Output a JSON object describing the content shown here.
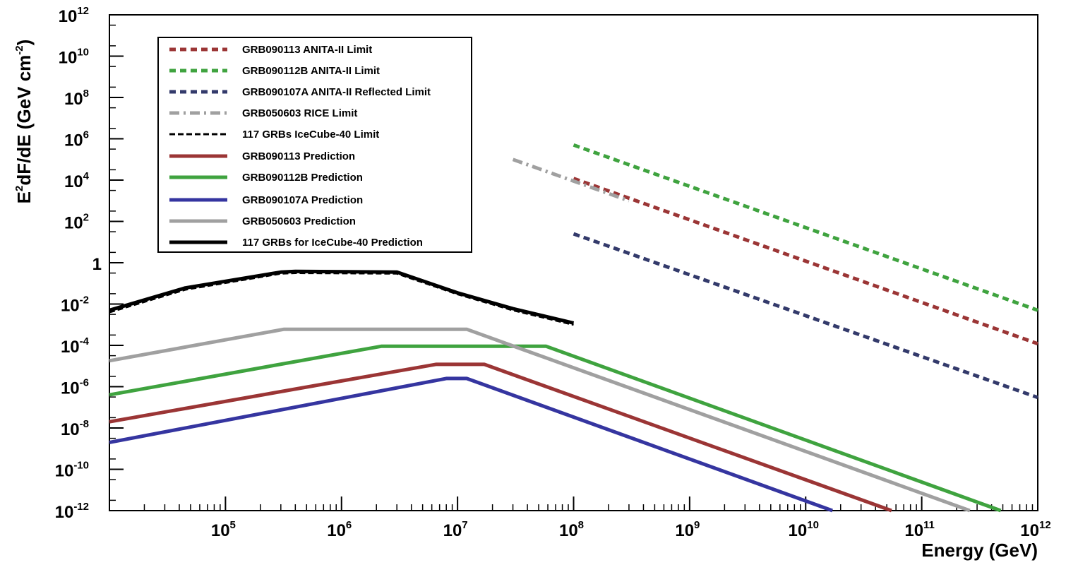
{
  "chart_data": {
    "type": "line",
    "title": "",
    "xlabel": "Energy (GeV)",
    "ylabel": {
      "base": "E",
      "sup1": "2",
      "mid": "dF/dE (GeV cm",
      "sup2": "-2",
      "end": ")"
    },
    "log_x": true,
    "log_y": true,
    "xlim": [
      10000,
      1000000000000
    ],
    "ylim": [
      1e-12,
      1000000000000.0
    ],
    "grid": false,
    "legend_position": "top-left",
    "x_ticks": [
      {
        "value": 100000,
        "base": "10",
        "exp": "5"
      },
      {
        "value": 1000000,
        "base": "10",
        "exp": "6"
      },
      {
        "value": 10000000,
        "base": "10",
        "exp": "7"
      },
      {
        "value": 100000000,
        "base": "10",
        "exp": "8"
      },
      {
        "value": 1000000000,
        "base": "10",
        "exp": "9"
      },
      {
        "value": 10000000000,
        "base": "10",
        "exp": "10"
      },
      {
        "value": 100000000000,
        "base": "10",
        "exp": "11"
      },
      {
        "value": 1000000000000,
        "base": "10",
        "exp": "12"
      }
    ],
    "y_ticks": [
      {
        "value": 1000000000000.0,
        "base": "10",
        "exp": "12"
      },
      {
        "value": 10000000000.0,
        "base": "10",
        "exp": "10"
      },
      {
        "value": 100000000.0,
        "base": "10",
        "exp": "8"
      },
      {
        "value": 1000000.0,
        "base": "10",
        "exp": "6"
      },
      {
        "value": 10000.0,
        "base": "10",
        "exp": "4"
      },
      {
        "value": 100.0,
        "base": "10",
        "exp": "2"
      },
      {
        "value": 1,
        "base": "1",
        "exp": ""
      },
      {
        "value": 0.01,
        "base": "10",
        "exp": "-2"
      },
      {
        "value": 0.0001,
        "base": "10",
        "exp": "-4"
      },
      {
        "value": 1e-06,
        "base": "10",
        "exp": "-6"
      },
      {
        "value": 1e-08,
        "base": "10",
        "exp": "-8"
      },
      {
        "value": 1e-10,
        "base": "10",
        "exp": "-10"
      },
      {
        "value": 1e-12,
        "base": "10",
        "exp": "-12"
      }
    ],
    "series": [
      {
        "name": "GRB090113 ANITA-II Limit",
        "color": "#9b3535",
        "style": "dotted-thick",
        "x": [
          100000000,
          1000000000000
        ],
        "y": [
          12000,
          0.00012
        ]
      },
      {
        "name": "GRB090112B ANITA-II Limit",
        "color": "#3fa33f",
        "style": "dotted-thick",
        "x": [
          100000000,
          1000000000000
        ],
        "y": [
          500000,
          0.005
        ]
      },
      {
        "name": "GRB090107A ANITA-II Reflected Limit",
        "color": "#333a6b",
        "style": "dotted-thick",
        "x": [
          100000000,
          1000000000000
        ],
        "y": [
          25,
          3e-07
        ]
      },
      {
        "name": "GRB050603 RICE Limit",
        "color": "#a0a0a0",
        "style": "dashdot",
        "x": [
          30000000,
          300000000
        ],
        "y": [
          100000,
          1000
        ]
      },
      {
        "name": "117 GRBs IceCube-40 Limit",
        "color": "#000000",
        "style": "dashed",
        "x": [
          10000,
          45000,
          300000,
          400000,
          3000000,
          10000000,
          30000000,
          100000000
        ],
        "y": [
          0.004,
          0.05,
          0.3,
          0.32,
          0.3,
          0.03,
          0.005,
          0.001
        ]
      },
      {
        "name": "GRB090113 Prediction",
        "color": "#9b3535",
        "style": "solid",
        "x": [
          10000,
          6500000,
          17000000,
          55000000000
        ],
        "y": [
          2e-08,
          1.2e-05,
          1.2e-05,
          1e-12
        ]
      },
      {
        "name": "GRB090112B Prediction",
        "color": "#3fa33f",
        "style": "solid",
        "x": [
          10000,
          2200000,
          58000000,
          480000000000
        ],
        "y": [
          4e-07,
          9e-05,
          9e-05,
          1e-12
        ]
      },
      {
        "name": "GRB090107A Prediction",
        "color": "#3535a0",
        "style": "solid",
        "x": [
          10000,
          8000000,
          12000000,
          17000000000
        ],
        "y": [
          2e-09,
          2.5e-06,
          2.5e-06,
          1e-12
        ]
      },
      {
        "name": "GRB050603 Prediction",
        "color": "#a0a0a0",
        "style": "solid",
        "x": [
          10000,
          320000,
          12000000,
          260000000000
        ],
        "y": [
          1.8e-05,
          0.0006,
          0.0006,
          1e-12
        ]
      },
      {
        "name": "117 GRBs for IceCube-40 Prediction",
        "color": "#000000",
        "style": "solid",
        "x": [
          10000,
          45000,
          300000,
          400000,
          3000000,
          10000000,
          30000000,
          100000000
        ],
        "y": [
          0.005,
          0.06,
          0.35,
          0.38,
          0.35,
          0.035,
          0.006,
          0.0012
        ]
      }
    ]
  }
}
